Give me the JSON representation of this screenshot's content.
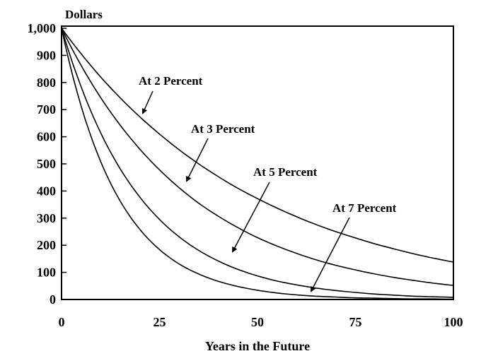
{
  "chart_data": {
    "type": "line",
    "title": "",
    "ylabel": "Dollars",
    "xlabel": "Years in the Future",
    "xlim": [
      0,
      100
    ],
    "ylim": [
      0,
      1000
    ],
    "x_ticks": [
      0,
      25,
      50,
      75,
      100
    ],
    "x_tick_labels": [
      "0",
      "25",
      "50",
      "75",
      "100"
    ],
    "y_ticks": [
      0,
      100,
      200,
      300,
      400,
      500,
      600,
      700,
      800,
      900,
      1000
    ],
    "y_tick_labels": [
      "0",
      "100",
      "200",
      "300",
      "400",
      "500",
      "600",
      "700",
      "800",
      "900",
      "1,000"
    ],
    "grid": false,
    "x": [
      0,
      5,
      10,
      15,
      20,
      25,
      30,
      35,
      40,
      45,
      50,
      55,
      60,
      65,
      70,
      75,
      80,
      85,
      90,
      95,
      100
    ],
    "series": [
      {
        "name": "At 2 Percent",
        "values": [
          1000,
          906,
          820,
          743,
          673,
          610,
          552,
          500,
          453,
          410,
          372,
          337,
          305,
          276,
          250,
          227,
          205,
          186,
          168,
          152,
          138
        ]
      },
      {
        "name": "At 3 Percent",
        "values": [
          1000,
          863,
          744,
          642,
          554,
          478,
          412,
          355,
          307,
          265,
          228,
          197,
          170,
          146,
          126,
          109,
          94,
          81,
          70,
          60,
          52
        ]
      },
      {
        "name": "At 5 Percent",
        "values": [
          1000,
          784,
          614,
          481,
          377,
          295,
          231,
          181,
          142,
          111,
          87,
          68,
          54,
          42,
          33,
          26,
          20,
          16,
          12,
          10,
          8
        ]
      },
      {
        "name": "At 7 Percent",
        "values": [
          1000,
          713,
          508,
          362,
          258,
          184,
          131,
          94,
          67,
          48,
          34,
          24,
          17,
          12,
          9,
          6,
          5,
          3,
          2,
          2,
          1
        ]
      }
    ],
    "line_color": "#000000"
  }
}
